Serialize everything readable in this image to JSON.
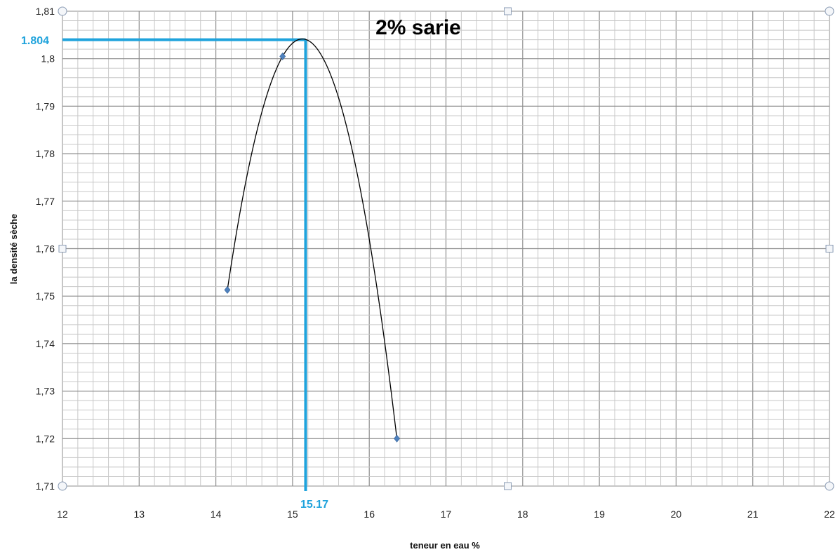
{
  "chart_data": {
    "type": "scatter",
    "title": "2% sarie",
    "xlabel": "teneur en eau %",
    "ylabel": "la densité sèche",
    "xlim": [
      12,
      22
    ],
    "ylim": [
      1.71,
      1.81
    ],
    "x_ticks": [
      "12",
      "13",
      "14",
      "15",
      "16",
      "17",
      "18",
      "19",
      "20",
      "21",
      "22"
    ],
    "y_ticks": [
      "1,81",
      "1,8",
      "1,79",
      "1,78",
      "1,77",
      "1,76",
      "1,75",
      "1,74",
      "1,73",
      "1,72",
      "1,71"
    ],
    "grid": true,
    "legend": "none",
    "series": [
      {
        "x": [
          14.15,
          14.87,
          16.36
        ],
        "y": [
          1.7513,
          1.8005,
          1.72
        ],
        "marker_color": "#4f81bd",
        "line_color": "#000000",
        "smoothed": true
      }
    ],
    "reference_lines": {
      "x_value": 15.17,
      "y_value": 1.804,
      "x_label": "15.17",
      "y_label": "1.804",
      "color": "#1fa3dc"
    }
  }
}
